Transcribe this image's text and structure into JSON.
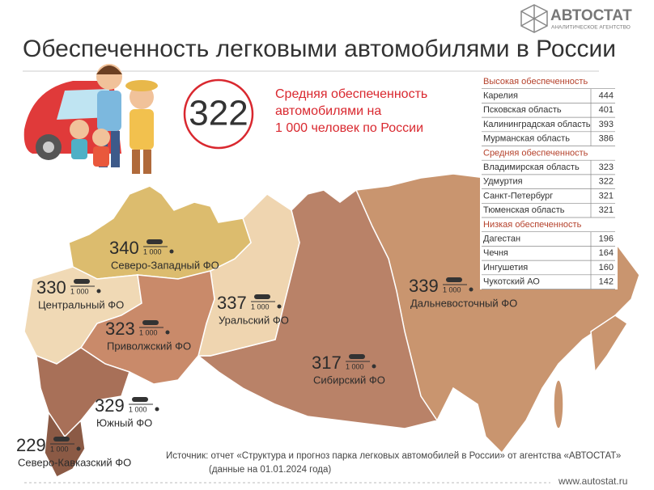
{
  "header": {
    "title": "Обеспеченность легковыми автомобилями в России",
    "logo": {
      "name": "АВТОСТАТ",
      "tagline": "АНАЛИТИЧЕСКОЕ АГЕНТСТВО"
    }
  },
  "average": {
    "value": 322,
    "text": [
      "Средняя обеспеченность",
      "автомобилями на",
      "1 000 человек по России"
    ]
  },
  "table": {
    "groups": [
      {
        "title": "Высокая обеспеченность",
        "rows": [
          [
            "Карелия",
            444
          ],
          [
            "Псковская область",
            401
          ],
          [
            "Калининградская область",
            393
          ],
          [
            "Мурманская область",
            386
          ]
        ]
      },
      {
        "title": "Средняя обеспеченность",
        "rows": [
          [
            "Владимирская область",
            323
          ],
          [
            "Удмуртия",
            322
          ],
          [
            "Санкт-Петербург",
            321
          ],
          [
            "Тюменская область",
            321
          ]
        ]
      },
      {
        "title": "Низкая обеспеченность",
        "rows": [
          [
            "Дагестан",
            196
          ],
          [
            "Чечня",
            164
          ],
          [
            "Ингушетия",
            160
          ],
          [
            "Чукотский АО",
            142
          ]
        ]
      }
    ]
  },
  "districts": [
    {
      "value": 340,
      "per": "1 000",
      "name": "Северо-Западный ФО"
    },
    {
      "value": 330,
      "per": "1 000",
      "name": "Центральный ФО"
    },
    {
      "value": 323,
      "per": "1 000",
      "name": "Приволжский ФО"
    },
    {
      "value": 337,
      "per": "1 000",
      "name": "Уральский ФО"
    },
    {
      "value": 317,
      "per": "1 000",
      "name": "Сибирский ФО"
    },
    {
      "value": 339,
      "per": "1 000",
      "name": "Дальневосточный ФО"
    },
    {
      "value": 329,
      "per": "1 000",
      "name": "Южный ФО"
    },
    {
      "value": 229,
      "per": "1 000",
      "name": "Северо-Кавказский ФО"
    }
  ],
  "source": [
    "Источник: отчет «Структура и прогноз парка легковых автомобилей в России» от агентства «АВТОСТАТ»",
    "(данные на 01.01.2024 года)"
  ],
  "url": "www.autostat.ru"
}
